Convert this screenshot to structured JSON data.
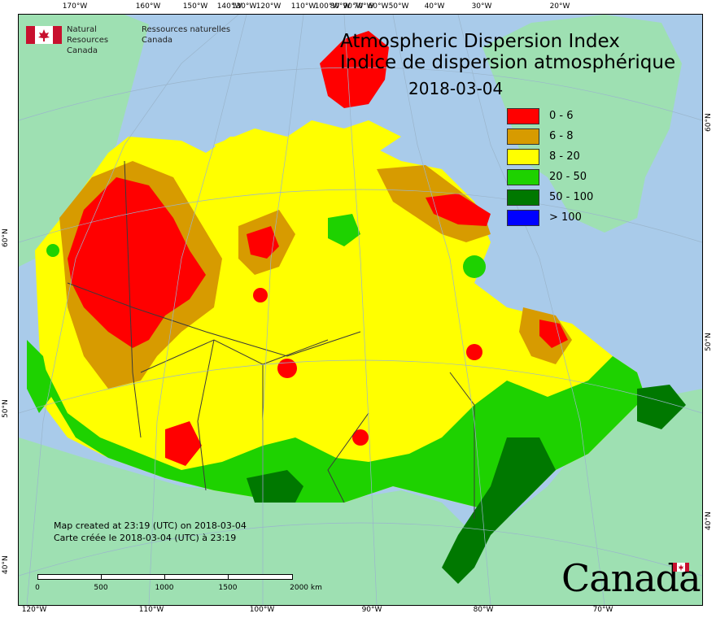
{
  "agency": {
    "name_en_line1": "Natural Resources",
    "name_en_line2": "Canada",
    "name_fr_line1": "Ressources naturelles",
    "name_fr_line2": "Canada"
  },
  "title": {
    "line1": "Atmospheric Dispersion Index",
    "line2": "Indice de dispersion atmosphérique",
    "date": "2018-03-04"
  },
  "legend": [
    {
      "label": "0 - 6",
      "color": "#ff0000"
    },
    {
      "label": "6 - 8",
      "color": "#d79b00"
    },
    {
      "label": "8 - 20",
      "color": "#ffff00"
    },
    {
      "label": "20 - 50",
      "color": "#1ed200"
    },
    {
      "label": "50 - 100",
      "color": "#007800"
    },
    {
      "label": "> 100",
      "color": "#0000ff"
    }
  ],
  "colors": {
    "ocean": "#a9cbea",
    "land": "#9ee0b2",
    "border": "#3a3a3a"
  },
  "graticule": {
    "top": [
      "170°W",
      "160°W",
      "150°W",
      "140°W",
      "130°W",
      "120°W",
      "110°W",
      "100°W",
      "90°W",
      "80°W",
      "70°W",
      "60°W",
      "50°W",
      "40°W",
      "30°W",
      "20°W"
    ],
    "bottom": [
      "120°W",
      "110°W",
      "100°W",
      "90°W",
      "80°W",
      "70°W"
    ],
    "left": [
      "60°N",
      "50°N",
      "40°N"
    ],
    "right": [
      "60°N",
      "50°N",
      "40°N"
    ]
  },
  "created": {
    "line1": "Map created at 23:19 (UTC) on 2018-03-04",
    "line2": "Carte créée le 2018-03-04 (UTC) à 23:19"
  },
  "scalebar": {
    "labels": [
      "0",
      "500",
      "1000",
      "1500",
      "2000 km"
    ]
  },
  "wordmark": "Canada"
}
